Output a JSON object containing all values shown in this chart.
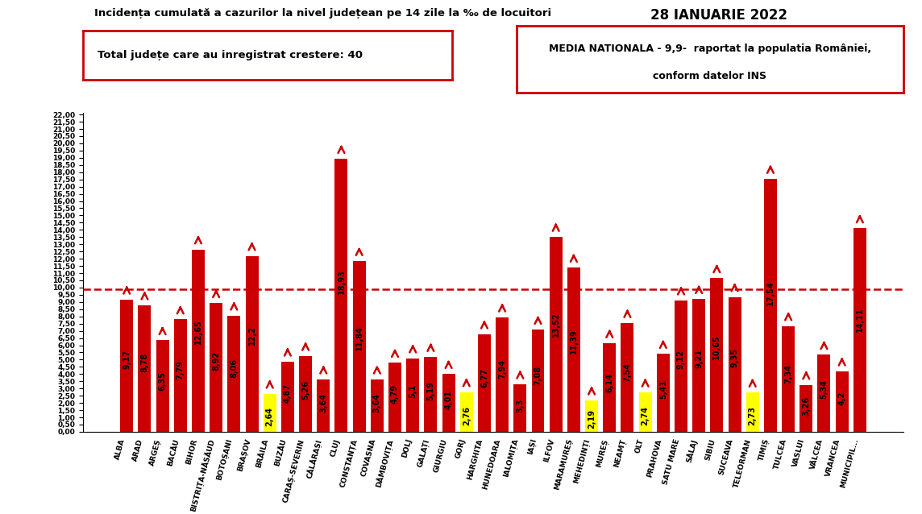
{
  "title": "Incidența cumulată a cazurilor la nivel județean pe 14 zile la ‰ de locuitori",
  "date": "28 IANUARIE 2022",
  "box1_text": "Total județe care au inregistrat crestere: 40",
  "box2_line1": "MEDIA NATIONALA - 9,9-  raportat la populatia României,",
  "box2_line2": "conform datelor INS",
  "reference_line": 9.9,
  "categories": [
    "ALBA",
    "ARAD",
    "ARGEȘ",
    "BACĂU",
    "BIHOR",
    "BISTRIȚA-NĂSĂUD",
    "BOTOȘANI",
    "BRAȘOV",
    "BRĂILA",
    "BUZĂU",
    "CARAȘ-SEVERIN",
    "CĂLĂRAȘI",
    "CLUJ",
    "CONSTANȚA",
    "COVASNA",
    "DÂMBOVIȚA",
    "DOLJ",
    "GALAȚI",
    "GIURGIU",
    "GORJ",
    "HARGHITA",
    "HUNEDOARA",
    "IALOMIȚA",
    "IAȘI",
    "ILFOV",
    "MARAMUREȘ",
    "MEHEDINȚI",
    "MUREȘ",
    "NEAMȚ",
    "OLT",
    "PRAHOVA",
    "SATU MARE",
    "SĂLAJ",
    "SIBIU",
    "SUCEAVA",
    "TELEORMAN",
    "TIMIȘ",
    "TULCEA",
    "VASLUI",
    "VÂLCEA",
    "VRANCEA",
    "MUNICIPIL..."
  ],
  "values": [
    9.17,
    8.78,
    6.35,
    7.79,
    12.65,
    8.92,
    8.06,
    12.2,
    2.64,
    4.87,
    5.26,
    3.64,
    18.93,
    11.84,
    3.64,
    4.79,
    5.1,
    5.19,
    4.01,
    2.76,
    6.77,
    7.94,
    3.3,
    7.08,
    13.52,
    11.39,
    2.19,
    6.14,
    7.54,
    2.74,
    5.41,
    9.12,
    9.21,
    10.65,
    9.35,
    2.73,
    17.54,
    7.34,
    3.26,
    5.34,
    4.2,
    14.11
  ],
  "yellow_indices": [
    8,
    19,
    26,
    29,
    35
  ],
  "bar_color": "#cc0000",
  "yellow_color": "#ffff00",
  "arrow_color": "#cc0000",
  "reference_color": "#cc0000",
  "background_color": "#ffffff",
  "ylim_min": 0.0,
  "ylim_max": 22.0,
  "ytick_min": 0.0,
  "ytick_max": 22.0,
  "ytick_step": 0.5,
  "label_fontsize": 7.0,
  "xlabel_fontsize": 6.5,
  "ylabel_fontsize": 6.5
}
